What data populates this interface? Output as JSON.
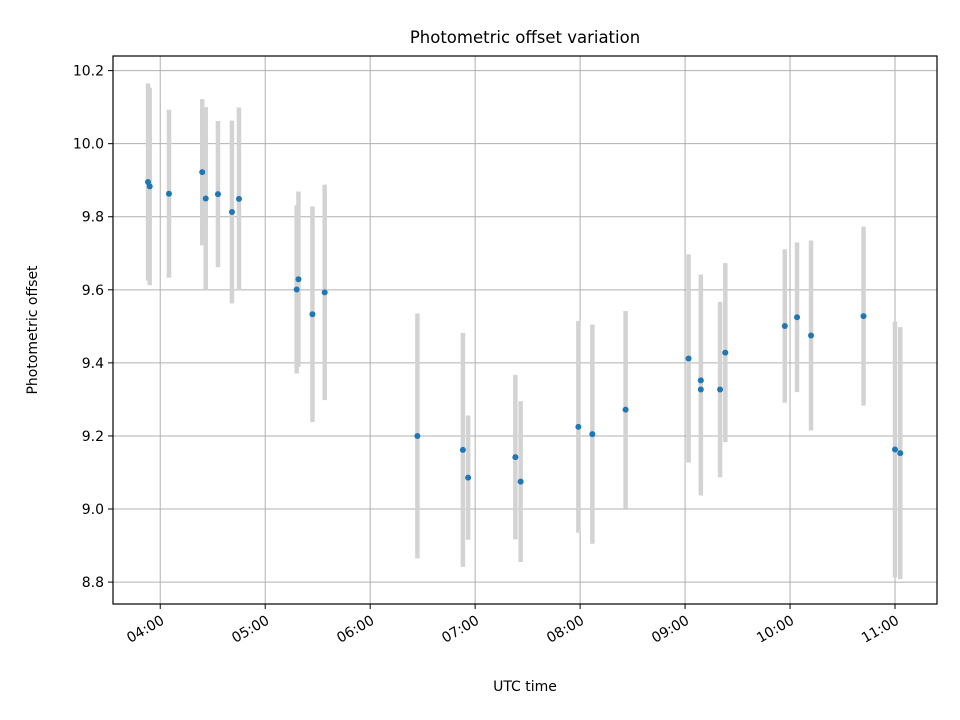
{
  "chart_data": {
    "type": "scatter",
    "title": "Photometric offset variation",
    "xlabel": "UTC time",
    "ylabel": "Photometric offset",
    "x_axis": {
      "kind": "time",
      "range": [
        "03:33",
        "11:24"
      ],
      "ticks": [
        "04:00",
        "05:00",
        "06:00",
        "07:00",
        "08:00",
        "09:00",
        "10:00",
        "11:00"
      ]
    },
    "y_axis": {
      "range": [
        8.74,
        10.24
      ],
      "ticks": [
        "8.8",
        "9.0",
        "9.2",
        "9.4",
        "9.6",
        "9.8",
        "10.0",
        "10.2"
      ]
    },
    "grid": true,
    "point_color": "#1f77b4",
    "errorbar_color": "#d3d3d3",
    "points": [
      {
        "t": "03:53",
        "y": 9.895,
        "err": 0.27
      },
      {
        "t": "03:54",
        "y": 9.883,
        "err": 0.27
      },
      {
        "t": "04:05",
        "y": 9.863,
        "err": 0.23
      },
      {
        "t": "04:24",
        "y": 9.922,
        "err": 0.2
      },
      {
        "t": "04:26",
        "y": 9.85,
        "err": 0.25
      },
      {
        "t": "04:33",
        "y": 9.862,
        "err": 0.2
      },
      {
        "t": "04:41",
        "y": 9.813,
        "err": 0.25
      },
      {
        "t": "04:45",
        "y": 9.849,
        "err": 0.25
      },
      {
        "t": "05:18",
        "y": 9.601,
        "err": 0.23
      },
      {
        "t": "05:19",
        "y": 9.629,
        "err": 0.24
      },
      {
        "t": "05:27",
        "y": 9.533,
        "err": 0.295
      },
      {
        "t": "05:34",
        "y": 9.593,
        "err": 0.295
      },
      {
        "t": "06:27",
        "y": 9.2,
        "err": 0.335
      },
      {
        "t": "06:53",
        "y": 9.162,
        "err": 0.32
      },
      {
        "t": "06:56",
        "y": 9.086,
        "err": 0.17
      },
      {
        "t": "07:23",
        "y": 9.142,
        "err": 0.225
      },
      {
        "t": "07:26",
        "y": 9.075,
        "err": 0.22
      },
      {
        "t": "07:59",
        "y": 9.225,
        "err": 0.29
      },
      {
        "t": "08:07",
        "y": 9.205,
        "err": 0.3
      },
      {
        "t": "08:26",
        "y": 9.272,
        "err": 0.27
      },
      {
        "t": "09:02",
        "y": 9.412,
        "err": 0.285
      },
      {
        "t": "09:09",
        "y": 9.352,
        "err": 0.29
      },
      {
        "t": "09:09",
        "y": 9.327,
        "err": 0.29
      },
      {
        "t": "09:20",
        "y": 9.327,
        "err": 0.24
      },
      {
        "t": "09:23",
        "y": 9.428,
        "err": 0.245
      },
      {
        "t": "09:57",
        "y": 9.501,
        "err": 0.21
      },
      {
        "t": "10:04",
        "y": 9.525,
        "err": 0.205
      },
      {
        "t": "10:12",
        "y": 9.475,
        "err": 0.26
      },
      {
        "t": "10:42",
        "y": 9.528,
        "err": 0.245
      },
      {
        "t": "11:00",
        "y": 9.163,
        "err": 0.35
      },
      {
        "t": "11:03",
        "y": 9.153,
        "err": 0.345
      }
    ]
  }
}
